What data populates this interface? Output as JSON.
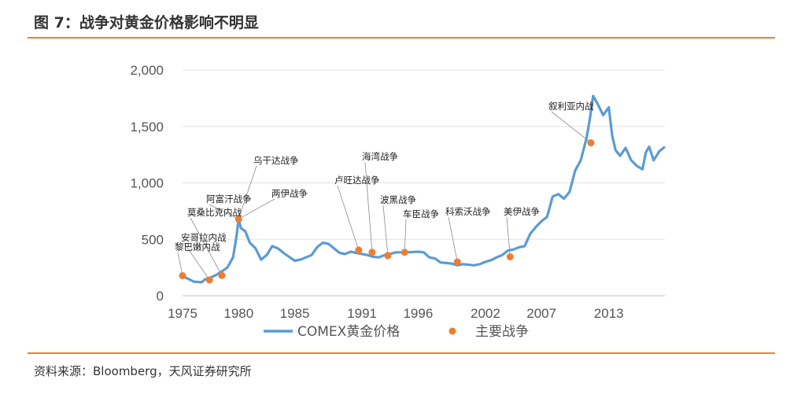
{
  "figure": {
    "title": "图 7：战争对黄金价格影响不明显",
    "source": "资料来源：Bloomberg，天风证券研究所"
  },
  "colors": {
    "accent": "#e8832a",
    "series": "#5b9bd5",
    "marker": "#ed7d31"
  },
  "chart_data": {
    "type": "line",
    "title": "",
    "xlabel": "",
    "ylabel": "",
    "ylim": [
      0,
      2000
    ],
    "xlim": [
      1975,
      2018
    ],
    "yticks": [
      0,
      500,
      1000,
      1500,
      2000
    ],
    "ytick_labels": [
      "0",
      "500",
      "1,000",
      "1,500",
      "2,000"
    ],
    "xticks": [
      1975,
      1980,
      1985,
      1991,
      1996,
      2002,
      2007,
      2013
    ],
    "xtick_labels": [
      "1975",
      "1980",
      "1985",
      "1991",
      "1996",
      "2002",
      "2007",
      "2013"
    ],
    "grid": "horizontal",
    "legend_position": "bottom",
    "series": [
      {
        "name": "COMEX黄金价格",
        "kind": "line",
        "x": [
          1975.0,
          1975.5,
          1976.0,
          1976.7,
          1977.0,
          1977.5,
          1978.0,
          1978.5,
          1979.0,
          1979.5,
          1979.8,
          1980.0,
          1980.2,
          1980.6,
          1981.0,
          1981.5,
          1982.0,
          1982.5,
          1983.0,
          1983.5,
          1984.0,
          1984.5,
          1985.0,
          1985.5,
          1986.0,
          1986.5,
          1987.0,
          1987.5,
          1988.0,
          1988.5,
          1989.0,
          1989.5,
          1990.0,
          1990.5,
          1991.0,
          1991.5,
          1992.0,
          1992.5,
          1993.0,
          1993.5,
          1994.0,
          1995.0,
          1996.0,
          1996.5,
          1997.0,
          1997.5,
          1998.0,
          1998.5,
          1999.0,
          1999.5,
          2000.0,
          2001.0,
          2001.5,
          2002.0,
          2002.5,
          2003.0,
          2003.5,
          2004.0,
          2004.5,
          2005.0,
          2005.5,
          2006.0,
          2006.5,
          2007.0,
          2007.5,
          2008.0,
          2008.5,
          2009.0,
          2009.5,
          2010.0,
          2010.5,
          2011.0,
          2011.3,
          2011.6,
          2012.0,
          2012.5,
          2013.0,
          2013.3,
          2013.6,
          2014.0,
          2014.5,
          2015.0,
          2015.5,
          2016.0,
          2016.3,
          2016.6,
          2017.0,
          2017.5,
          2018.0
        ],
        "values": [
          175,
          150,
          125,
          120,
          145,
          160,
          185,
          215,
          250,
          340,
          520,
          680,
          600,
          570,
          470,
          420,
          320,
          360,
          440,
          420,
          380,
          345,
          310,
          320,
          340,
          360,
          430,
          470,
          460,
          420,
          380,
          370,
          390,
          380,
          370,
          360,
          345,
          340,
          360,
          370,
          385,
          385,
          390,
          385,
          340,
          330,
          295,
          290,
          285,
          270,
          280,
          270,
          280,
          300,
          315,
          340,
          360,
          400,
          410,
          430,
          440,
          550,
          610,
          660,
          700,
          880,
          900,
          860,
          920,
          1110,
          1200,
          1390,
          1560,
          1770,
          1700,
          1600,
          1670,
          1420,
          1290,
          1240,
          1310,
          1200,
          1150,
          1120,
          1270,
          1320,
          1200,
          1280,
          1320
        ]
      },
      {
        "name": "主要战争",
        "kind": "scatter",
        "points": [
          {
            "x": 1975.0,
            "y": 178
          },
          {
            "x": 1977.4,
            "y": 140
          },
          {
            "x": 1978.5,
            "y": 180
          },
          {
            "x": 1980.0,
            "y": 680
          },
          {
            "x": 1990.7,
            "y": 405
          },
          {
            "x": 1991.9,
            "y": 385
          },
          {
            "x": 1993.3,
            "y": 355
          },
          {
            "x": 1994.8,
            "y": 385
          },
          {
            "x": 1999.5,
            "y": 300
          },
          {
            "x": 2004.2,
            "y": 345
          },
          {
            "x": 2011.4,
            "y": 1355
          }
        ]
      }
    ],
    "annotations": [
      {
        "text": "黎巴嫩内战"
      },
      {
        "text": "安哥拉内战"
      },
      {
        "text": "莫桑比克内战"
      },
      {
        "text": "阿富汗战争"
      },
      {
        "text": "乌干达战争"
      },
      {
        "text": "两伊战争"
      },
      {
        "text": "卢旺达战争"
      },
      {
        "text": "海湾战争"
      },
      {
        "text": "波黑战争"
      },
      {
        "text": "车臣战争"
      },
      {
        "text": "科索沃战争"
      },
      {
        "text": "美伊战争"
      },
      {
        "text": "叙利亚内战"
      }
    ]
  }
}
